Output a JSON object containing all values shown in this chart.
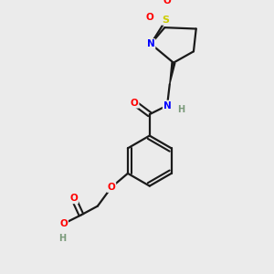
{
  "bg_color": "#ebebeb",
  "bond_color": "#1a1a1a",
  "atom_colors": {
    "O": "#ff0000",
    "N": "#0000ff",
    "S": "#cccc00",
    "H": "#7a9a7a",
    "C": "#1a1a1a"
  }
}
